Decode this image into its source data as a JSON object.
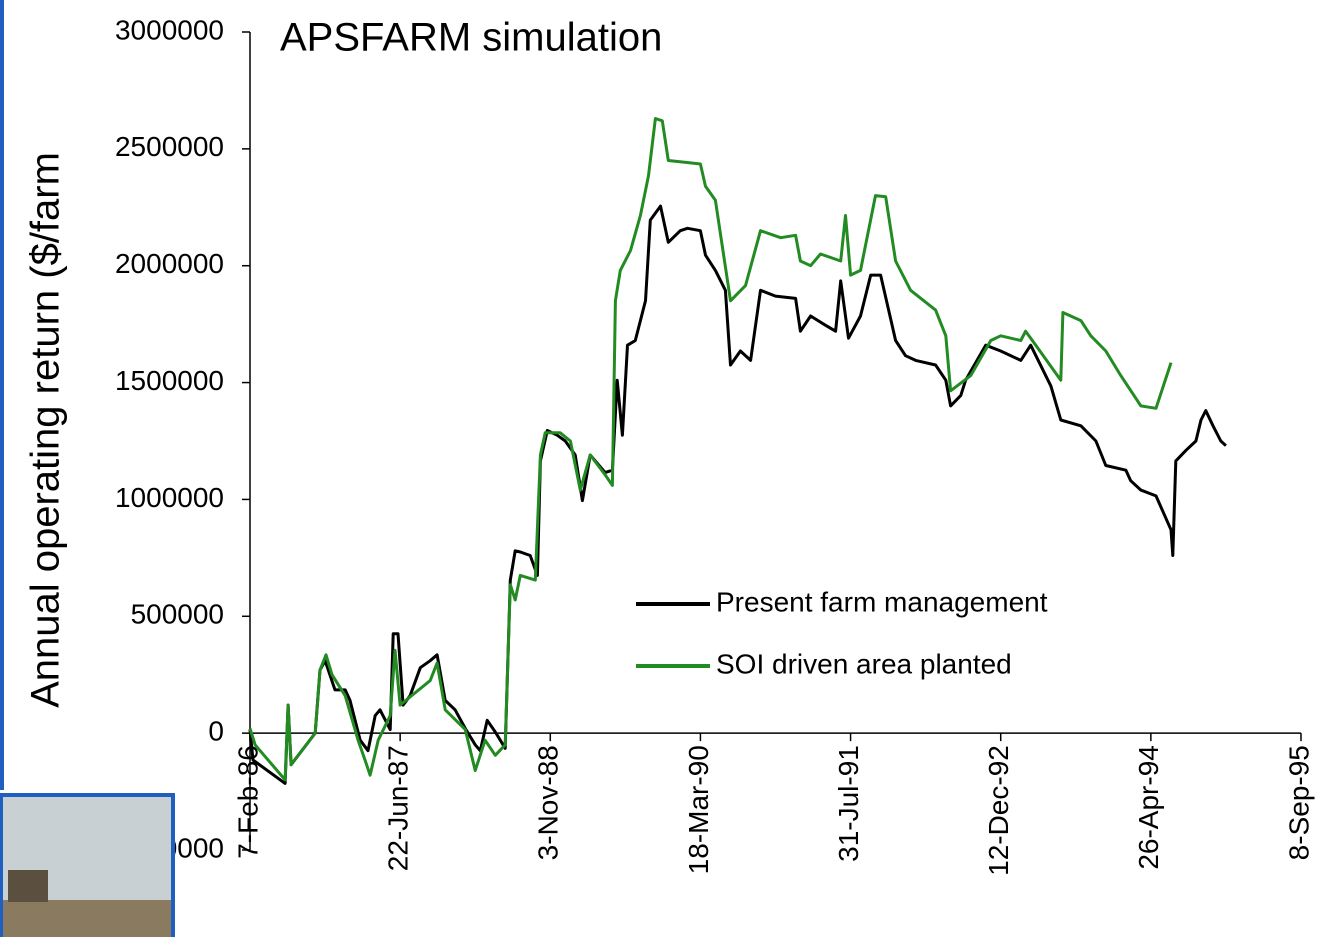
{
  "chart_data": {
    "type": "line",
    "title": "APSFARM simulation",
    "y_label": "Annual operating return ($/farm",
    "xlim": [
      31450,
      34950
    ],
    "xticks": [
      {
        "value": 31450,
        "label": "7-Feb-86"
      },
      {
        "value": 31950,
        "label": "22-Jun-87"
      },
      {
        "value": 32450,
        "label": "3-Nov-88"
      },
      {
        "value": 32950,
        "label": "18-Mar-90"
      },
      {
        "value": 33450,
        "label": "31-Jul-91"
      },
      {
        "value": 33950,
        "label": "12-Dec-92"
      },
      {
        "value": 34450,
        "label": "26-Apr-94"
      },
      {
        "value": 34950,
        "label": "8-Sep-95"
      }
    ],
    "ylim": [
      -500000,
      3000000
    ],
    "yticks": [
      -500000,
      0,
      500000,
      1000000,
      1500000,
      2000000,
      2500000,
      3000000
    ],
    "grid": false,
    "legend_position": "right",
    "series": [
      {
        "name": "Present farm management",
        "color": "#000000",
        "x": [
          31450,
          31460,
          31567,
          31577,
          31587,
          31667,
          31683,
          31700,
          31733,
          31767,
          31783,
          31817,
          31843,
          31867,
          31883,
          31917,
          31927,
          31943,
          31960,
          31983,
          32017,
          32050,
          32073,
          32100,
          32133,
          32167,
          32200,
          32217,
          32240,
          32267,
          32300,
          32317,
          32333,
          32350,
          32383,
          32407,
          32417,
          32440,
          32473,
          32500,
          32533,
          32557,
          32583,
          32633,
          32657,
          32673,
          32690,
          32707,
          32733,
          32767,
          32783,
          32817,
          32843,
          32883,
          32907,
          32950,
          32967,
          33000,
          33033,
          33050,
          33083,
          33117,
          33150,
          33200,
          33267,
          33283,
          33317,
          33367,
          33400,
          33417,
          33443,
          33483,
          33517,
          33550,
          33600,
          33633,
          33667,
          33733,
          33767,
          33783,
          33817,
          33833,
          33900,
          33950,
          34017,
          34050,
          34117,
          34150,
          34217,
          34267,
          34300,
          34367,
          34383,
          34417,
          34467,
          34517,
          34523,
          34533,
          34567,
          34600,
          34617,
          34633,
          34657,
          34683,
          34700
        ],
        "values": [
          15000,
          -115000,
          -215000,
          120000,
          -135000,
          0,
          270000,
          310000,
          185000,
          185000,
          140000,
          -30000,
          -75000,
          75000,
          100000,
          15000,
          425000,
          425000,
          120000,
          160000,
          280000,
          310000,
          335000,
          140000,
          100000,
          20000,
          -50000,
          -75000,
          55000,
          5000,
          -65000,
          655000,
          780000,
          775000,
          760000,
          675000,
          1165000,
          1295000,
          1275000,
          1250000,
          1190000,
          995000,
          1190000,
          1115000,
          1125000,
          1510000,
          1275000,
          1660000,
          1680000,
          1850000,
          2195000,
          2255000,
          2100000,
          2150000,
          2160000,
          2150000,
          2045000,
          1980000,
          1895000,
          1575000,
          1635000,
          1595000,
          1895000,
          1870000,
          1860000,
          1720000,
          1785000,
          1745000,
          1720000,
          1935000,
          1690000,
          1785000,
          1960000,
          1960000,
          1680000,
          1615000,
          1595000,
          1575000,
          1510000,
          1400000,
          1445000,
          1510000,
          1660000,
          1635000,
          1595000,
          1660000,
          1485000,
          1340000,
          1315000,
          1250000,
          1145000,
          1125000,
          1080000,
          1040000,
          1015000,
          870000,
          760000,
          1165000,
          1210000,
          1250000,
          1340000,
          1380000,
          1315000,
          1250000,
          1230000
        ]
      },
      {
        "name": "SOI driven area planted",
        "color": "#228b22",
        "x": [
          31450,
          31467,
          31567,
          31577,
          31587,
          31667,
          31683,
          31703,
          31723,
          31767,
          31810,
          31833,
          31850,
          31877,
          31917,
          31933,
          31950,
          31983,
          32050,
          32073,
          32100,
          32167,
          32200,
          32233,
          32267,
          32300,
          32317,
          32333,
          32350,
          32400,
          32417,
          32433,
          32483,
          32517,
          32550,
          32583,
          32633,
          32657,
          32667,
          32683,
          32717,
          32750,
          32777,
          32800,
          32823,
          32843,
          32917,
          32950,
          32967,
          33000,
          33050,
          33100,
          33150,
          33217,
          33267,
          33283,
          33317,
          33350,
          33417,
          33433,
          33450,
          33483,
          33533,
          33567,
          33600,
          33650,
          33733,
          33767,
          33783,
          33850,
          33917,
          33950,
          34017,
          34033,
          34067,
          34150,
          34157,
          34217,
          34250,
          34300,
          34350,
          34417,
          34467,
          34517
        ],
        "values": [
          20000,
          -50000,
          -200000,
          120000,
          -135000,
          0,
          270000,
          335000,
          250000,
          160000,
          -30000,
          -115000,
          -180000,
          -30000,
          75000,
          355000,
          120000,
          155000,
          225000,
          300000,
          100000,
          15000,
          -160000,
          -30000,
          -95000,
          -50000,
          635000,
          570000,
          675000,
          655000,
          1190000,
          1285000,
          1285000,
          1250000,
          1040000,
          1190000,
          1105000,
          1060000,
          1850000,
          1980000,
          2065000,
          2215000,
          2385000,
          2630000,
          2620000,
          2450000,
          2440000,
          2435000,
          2340000,
          2280000,
          1850000,
          1915000,
          2150000,
          2120000,
          2130000,
          2020000,
          2000000,
          2050000,
          2020000,
          2215000,
          1960000,
          1980000,
          2300000,
          2295000,
          2020000,
          1895000,
          1810000,
          1700000,
          1465000,
          1530000,
          1680000,
          1700000,
          1680000,
          1720000,
          1660000,
          1510000,
          1800000,
          1765000,
          1700000,
          1635000,
          1530000,
          1400000,
          1390000,
          1585000
        ]
      }
    ]
  }
}
